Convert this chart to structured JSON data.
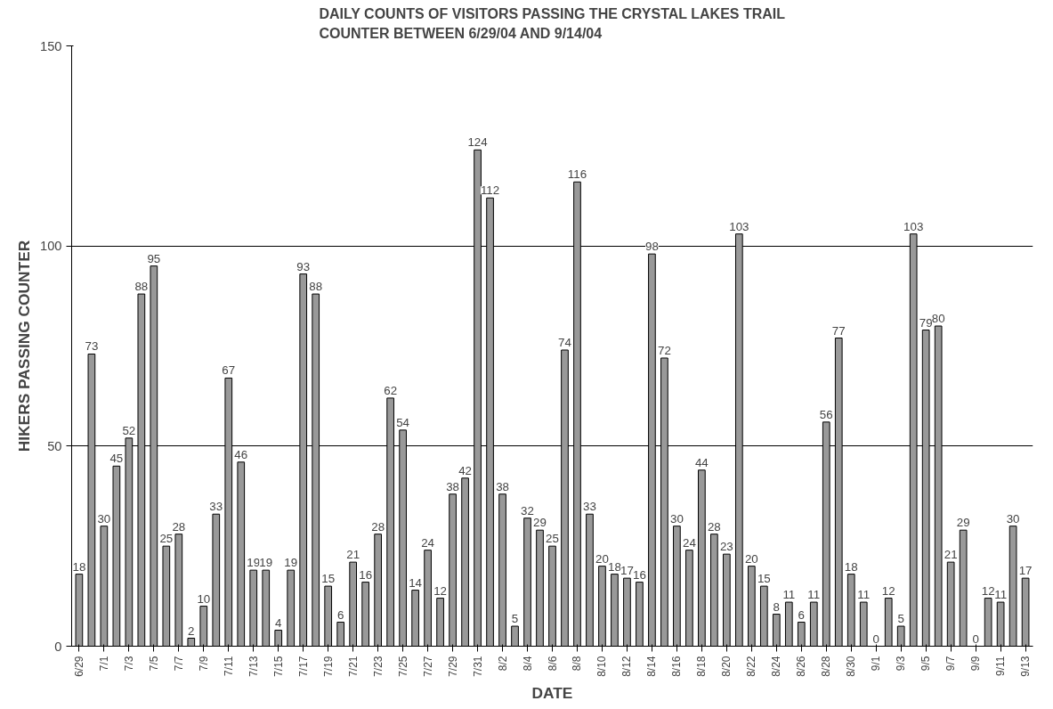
{
  "chart_data": {
    "type": "bar",
    "title": "DAILY COUNTS OF VISITORS PASSING THE CRYSTAL LAKES TRAIL\nCOUNTER BETWEEN 6/29/04 AND 9/14/04",
    "xlabel": "DATE",
    "ylabel": "HIKERS PASSING COUNTER",
    "categories": [
      "6/29",
      null,
      "7/1",
      null,
      "7/3",
      null,
      "7/5",
      null,
      "7/7",
      null,
      "7/9",
      null,
      "7/11",
      null,
      "7/13",
      null,
      "7/15",
      null,
      "7/17",
      null,
      "7/19",
      null,
      "7/21",
      null,
      "7/23",
      null,
      "7/25",
      null,
      "7/27",
      null,
      "7/29",
      null,
      "7/31",
      null,
      "8/2",
      null,
      "8/4",
      null,
      "8/6",
      null,
      "8/8",
      null,
      "8/10",
      null,
      "8/12",
      null,
      "8/14",
      null,
      "8/16",
      null,
      "8/18",
      null,
      "8/20",
      null,
      "8/22",
      null,
      "8/24",
      null,
      "8/26",
      null,
      "8/28",
      null,
      "8/30",
      null,
      "9/1",
      null,
      "9/3",
      null,
      "9/5",
      null,
      "9/7",
      null,
      "9/9",
      null,
      "9/11",
      null,
      "9/13"
    ],
    "values": [
      18,
      73,
      30,
      45,
      52,
      88,
      95,
      25,
      28,
      2,
      10,
      33,
      67,
      46,
      19,
      19,
      4,
      19,
      93,
      88,
      15,
      6,
      21,
      16,
      28,
      62,
      54,
      14,
      24,
      12,
      38,
      42,
      124,
      112,
      38,
      5,
      32,
      29,
      25,
      74,
      116,
      33,
      20,
      18,
      17,
      16,
      98,
      72,
      30,
      24,
      44,
      28,
      23,
      103,
      20,
      15,
      8,
      11,
      6,
      11,
      56,
      77,
      18,
      11,
      0,
      12,
      5,
      103,
      79,
      80,
      21,
      29,
      0,
      12,
      11,
      30,
      17
    ],
    "color": "#999999",
    "ylim": [
      0,
      150
    ],
    "yticks": [
      0,
      50,
      100,
      150
    ],
    "grid": "y",
    "data_labels": true
  }
}
